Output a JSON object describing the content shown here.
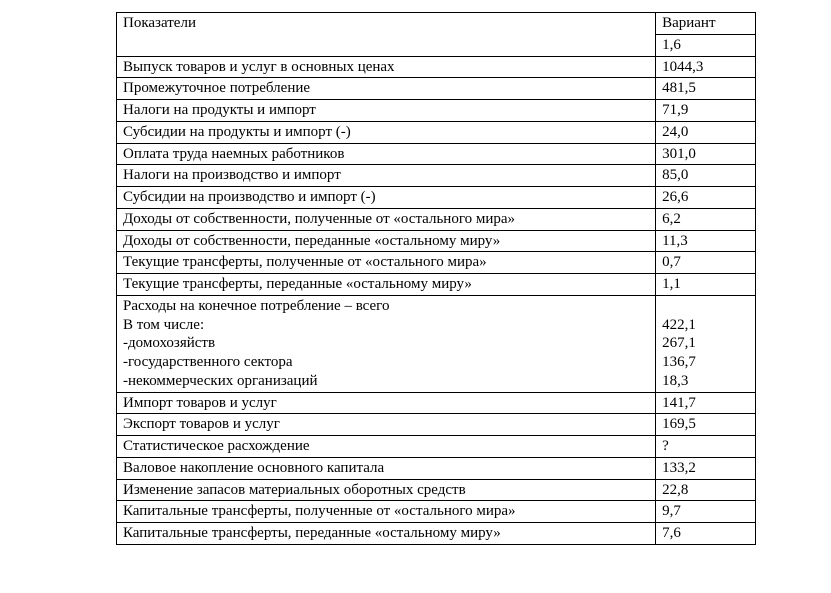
{
  "table": {
    "header_label": "Показатели",
    "header_value_line1": "Вариант",
    "header_value_line2": "1,6",
    "rows": [
      {
        "label": "Выпуск товаров и услуг в основных ценах",
        "value": "1044,3"
      },
      {
        "label": "Промежуточное потребление",
        "value": "481,5"
      },
      {
        "label": "Налоги на продукты и импорт",
        "value": "71,9"
      },
      {
        "label": "Субсидии на продукты и импорт (-)",
        "value": "24,0"
      },
      {
        "label": "Оплата труда наемных работников",
        "value": "301,0"
      },
      {
        "label": "Налоги на производство и импорт",
        "value": "85,0"
      },
      {
        "label": "Субсидии на производство и импорт (-)",
        "value": "26,6"
      },
      {
        "label": "Доходы от собственности, полученные от «остального мира»",
        "value": "6,2"
      },
      {
        "label": "Доходы от собственности, переданные «остальному миру»",
        "value": "11,3"
      },
      {
        "label": "Текущие трансферты, полученные от «остального мира»",
        "value": "0,7"
      },
      {
        "label": "Текущие трансферты, переданные «остальному миру»",
        "value": "1,1"
      },
      {
        "label": "Расходы на конечное потребление – всего\nВ том числе:\n-домохозяйств\n-государственного сектора\n-некоммерческих организаций",
        "value": "\n422,1\n267,1\n136,7\n18,3"
      },
      {
        "label": "Импорт товаров и услуг",
        "value": "141,7"
      },
      {
        "label": "Экспорт товаров и услуг",
        "value": "169,5"
      },
      {
        "label": "Статистическое расхождение",
        "value": "?"
      },
      {
        "label": "Валовое накопление основного капитала",
        "value": "133,2"
      },
      {
        "label": "Изменение запасов материальных оборотных  средств",
        "value": "22,8"
      },
      {
        "label": "Капитальные трансферты, полученные от «остального мира»",
        "value": "9,7"
      },
      {
        "label": "Капитальные трансферты, переданные «остальному миру»",
        "value": "7,6"
      }
    ]
  }
}
